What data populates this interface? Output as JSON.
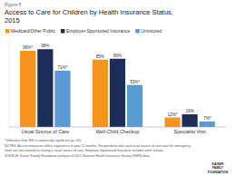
{
  "chart_data": {
    "type": "bar",
    "title": [
      "Access to Care for Children by Health Insurance Status,",
      "2015"
    ],
    "annotations": {
      "figure": "Figure 5",
      "notes": [
        "*Difference from ESI is statistically significant (p<.05).",
        "NOTES: Access measures reflect experience in past 12 months. Respondents who said usual source of care was the emergency",
        "room are not counted as having a usual source of care. Employer-Sponsored Insurance includes other private.",
        "SOURCE: Kaiser Family Foundation analysis of 2015 National Health Insurance Survey (NHIS) data."
      ],
      "logo": [
        "KAISER",
        "FAMILY",
        "FOUNDATION"
      ]
    },
    "categories": [
      "Usual Source of Care",
      "Well-Child Checkup",
      "Specialist Visit"
    ],
    "series": [
      {
        "name": "Medicaid/Other Public",
        "color": "#F7941D",
        "values": [
          96,
          85,
          12
        ],
        "value_labels": [
          "96%*",
          "85%",
          "12%*"
        ]
      },
      {
        "name": "Employer-Sponsored Insurance",
        "color": "#1C2D5A",
        "values": [
          98,
          86,
          16
        ],
        "value_labels": [
          "98%",
          "86%",
          "16%"
        ]
      },
      {
        "name": "Uninsured",
        "color": "#5B9BD5",
        "values": [
          71,
          53,
          7
        ],
        "value_labels": [
          "71%*",
          "53%*",
          "7%*"
        ]
      }
    ],
    "ylim": [
      0,
      112
    ],
    "yticks": [],
    "tick_labels": "x",
    "data_labels": true,
    "legend": "top",
    "grid": false
  }
}
